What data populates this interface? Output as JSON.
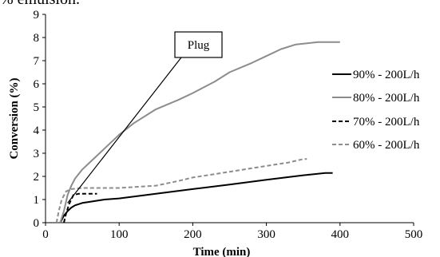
{
  "header_fragment": "% emulsion.",
  "chart_data": {
    "type": "line",
    "xlabel": "Time (min)",
    "ylabel": "Conversion (%)",
    "xlim": [
      0,
      500
    ],
    "ylim": [
      0,
      9
    ],
    "xticks": [
      0,
      100,
      200,
      300,
      400,
      500
    ],
    "yticks": [
      0,
      1,
      2,
      3,
      4,
      5,
      6,
      7,
      8,
      9
    ],
    "grid": false,
    "legend_position": "right",
    "annotation": {
      "text": "Plug",
      "points_to": {
        "x": 30,
        "y": 0.85
      }
    },
    "series": [
      {
        "name": "90% - 200L/h",
        "color": "#000000",
        "dash": "solid",
        "x": [
          20,
          25,
          30,
          35,
          40,
          50,
          60,
          80,
          100,
          150,
          200,
          250,
          300,
          350,
          380,
          390
        ],
        "y": [
          0,
          0.3,
          0.5,
          0.65,
          0.75,
          0.85,
          0.9,
          1.0,
          1.05,
          1.25,
          1.45,
          1.65,
          1.85,
          2.05,
          2.15,
          2.15
        ]
      },
      {
        "name": "80% - 200L/h",
        "color": "#8c8c8c",
        "dash": "solid",
        "x": [
          20,
          25,
          30,
          35,
          40,
          50,
          60,
          80,
          100,
          120,
          150,
          180,
          200,
          230,
          250,
          280,
          300,
          320,
          340,
          370,
          400
        ],
        "y": [
          0,
          0.5,
          1.2,
          1.6,
          1.9,
          2.3,
          2.6,
          3.2,
          3.8,
          4.3,
          4.9,
          5.3,
          5.6,
          6.1,
          6.5,
          6.9,
          7.2,
          7.5,
          7.7,
          7.8,
          7.8
        ]
      },
      {
        "name": "70% - 200L/h",
        "color": "#000000",
        "dash": "dashed",
        "x": [
          25,
          28,
          32,
          38,
          45,
          55,
          70
        ],
        "y": [
          0,
          0.4,
          0.8,
          1.2,
          1.25,
          1.25,
          1.25
        ]
      },
      {
        "name": "60% - 200L/h",
        "color": "#8c8c8c",
        "dash": "dashed",
        "x": [
          15,
          18,
          22,
          28,
          35,
          50,
          100,
          150,
          180,
          200,
          250,
          300,
          330,
          350,
          355
        ],
        "y": [
          0,
          0.5,
          1.0,
          1.35,
          1.45,
          1.5,
          1.5,
          1.6,
          1.8,
          1.95,
          2.2,
          2.45,
          2.6,
          2.75,
          2.75
        ]
      }
    ]
  }
}
